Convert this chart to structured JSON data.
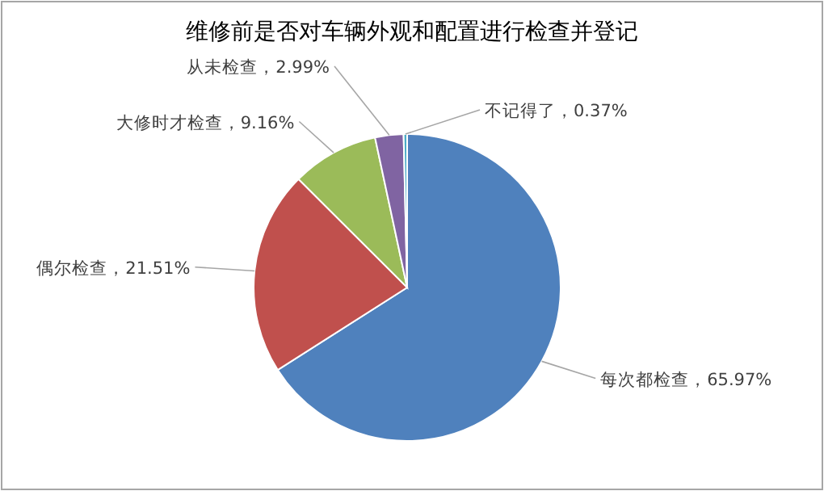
{
  "chart_data": {
    "type": "pie",
    "title": "维修前是否对车辆外观和配置进行检查并登记",
    "categories": [
      "每次都检查",
      "偶尔检查",
      "大修时才检查",
      "从未检查",
      "不记得了"
    ],
    "values": [
      65.97,
      21.51,
      9.16,
      2.99,
      0.37
    ],
    "colors": [
      "#4f81bd",
      "#c0504d",
      "#9bbb59",
      "#8064a2",
      "#4bacc6"
    ],
    "value_labels": [
      "65.97%",
      "21.51%",
      "9.16%",
      "2.99%",
      "0.37%"
    ]
  }
}
